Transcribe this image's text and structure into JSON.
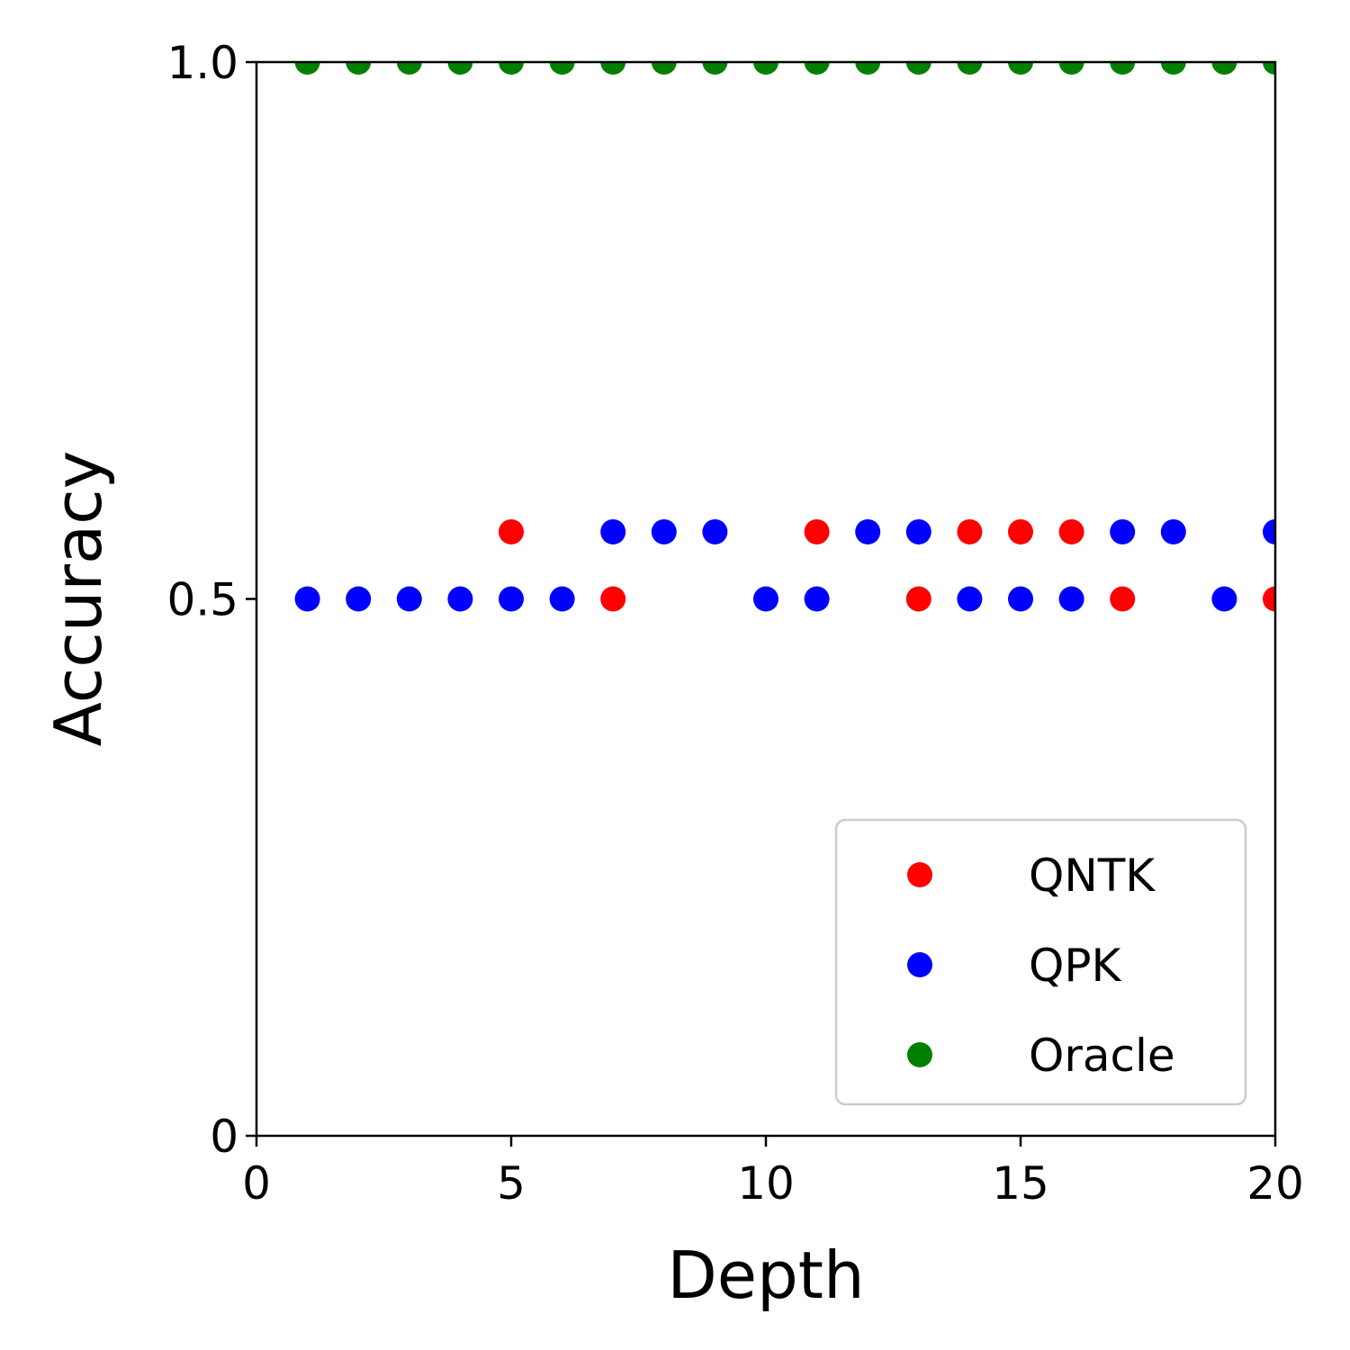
{
  "chart_data": {
    "type": "scatter",
    "title": "",
    "xlabel": "Depth",
    "ylabel": "Accuracy",
    "xlim": [
      0,
      20
    ],
    "ylim": [
      0,
      1
    ],
    "xticks": [
      0,
      5,
      10,
      15,
      20
    ],
    "xtick_labels": [
      "0",
      "5",
      "10",
      "15",
      "20"
    ],
    "yticks": [
      0,
      0.5,
      1
    ],
    "ytick_labels": [
      "0",
      "0.5",
      "1.0"
    ],
    "grid": false,
    "legend": {
      "position": "lower-right"
    },
    "series": [
      {
        "name": "QNTK",
        "color": "#ff0000",
        "x": [
          5,
          7,
          11,
          13,
          14,
          15,
          16,
          17,
          20
        ],
        "y": [
          0.5625,
          0.5,
          0.5625,
          0.5,
          0.5625,
          0.5625,
          0.5625,
          0.5,
          0.5
        ]
      },
      {
        "name": "QPK",
        "color": "#0000ff",
        "x": [
          1,
          2,
          3,
          4,
          5,
          6,
          7,
          8,
          9,
          10,
          11,
          12,
          13,
          14,
          15,
          16,
          17,
          18,
          19,
          20
        ],
        "y": [
          0.5,
          0.5,
          0.5,
          0.5,
          0.5,
          0.5,
          0.5625,
          0.5625,
          0.5625,
          0.5,
          0.5,
          0.5625,
          0.5625,
          0.5,
          0.5,
          0.5,
          0.5625,
          0.5625,
          0.5,
          0.5625
        ]
      },
      {
        "name": "Oracle",
        "color": "#008000",
        "x": [
          1,
          2,
          3,
          4,
          5,
          6,
          7,
          8,
          9,
          10,
          11,
          12,
          13,
          14,
          15,
          16,
          17,
          18,
          19,
          20
        ],
        "y": [
          1,
          1,
          1,
          1,
          1,
          1,
          1,
          1,
          1,
          1,
          1,
          1,
          1,
          1,
          1,
          1,
          1,
          1,
          1,
          1
        ]
      }
    ]
  }
}
